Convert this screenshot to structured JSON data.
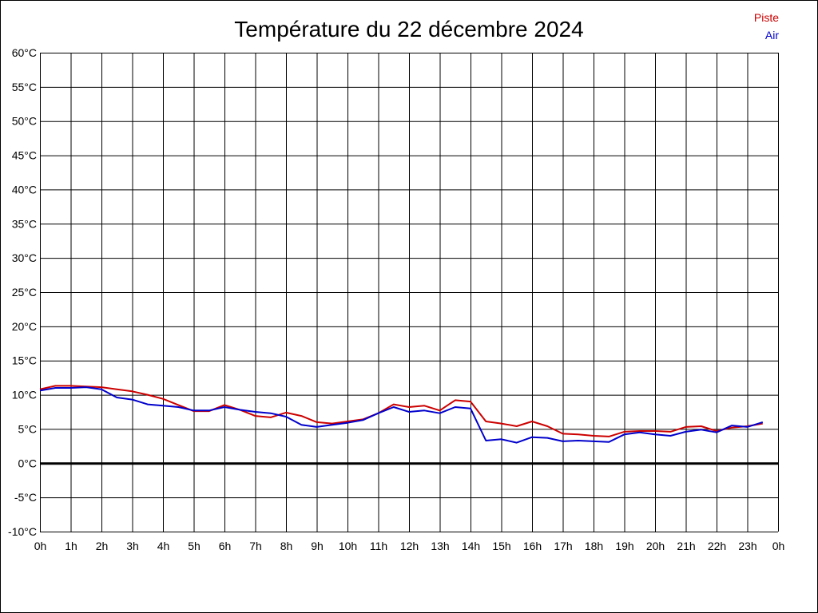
{
  "chart_data": {
    "type": "line",
    "title": "Température du 22 décembre 2024",
    "xlabel": "",
    "ylabel": "",
    "xlim": [
      0,
      24
    ],
    "ylim": [
      -10,
      60
    ],
    "grid": true,
    "legend_position": "top-right",
    "x_ticks": [
      "0h",
      "1h",
      "2h",
      "3h",
      "4h",
      "5h",
      "6h",
      "7h",
      "8h",
      "9h",
      "10h",
      "11h",
      "12h",
      "13h",
      "14h",
      "15h",
      "16h",
      "17h",
      "18h",
      "19h",
      "20h",
      "21h",
      "22h",
      "23h",
      "0h"
    ],
    "y_ticks": [
      "60°C",
      "55°C",
      "50°C",
      "45°C",
      "40°C",
      "35°C",
      "30°C",
      "25°C",
      "20°C",
      "15°C",
      "10°C",
      "5°C",
      "0°C",
      "-5°C",
      "-10°C"
    ],
    "x": [
      0,
      0.5,
      1,
      1.5,
      2,
      2.5,
      3,
      3.5,
      4,
      4.5,
      5,
      5.5,
      6,
      6.5,
      7,
      7.5,
      8,
      8.5,
      9,
      9.5,
      10,
      10.5,
      11,
      11.5,
      12,
      12.5,
      13,
      13.5,
      14,
      14.5,
      15,
      15.5,
      16,
      16.5,
      17,
      17.5,
      18,
      18.5,
      19,
      19.5,
      20,
      20.5,
      21,
      21.5,
      22,
      22.5,
      23,
      23.5
    ],
    "series": [
      {
        "name": "Piste",
        "color": "#cc0000",
        "values": [
          10.8,
          11.3,
          11.3,
          11.2,
          11.1,
          10.8,
          10.5,
          10.0,
          9.4,
          8.5,
          7.6,
          7.6,
          8.5,
          7.8,
          6.9,
          6.7,
          7.4,
          6.9,
          6.0,
          5.8,
          6.1,
          6.4,
          7.3,
          8.6,
          8.2,
          8.4,
          7.7,
          9.2,
          9.0,
          6.1,
          5.8,
          5.4,
          6.1,
          5.4,
          4.3,
          4.2,
          4.0,
          3.9,
          4.6,
          4.7,
          4.7,
          4.6,
          5.3,
          5.4,
          4.7,
          5.2,
          5.4,
          5.8
        ]
      },
      {
        "name": "Air",
        "color": "#0000cc",
        "values": [
          10.6,
          11.0,
          11.0,
          11.1,
          10.8,
          9.6,
          9.3,
          8.6,
          8.4,
          8.2,
          7.7,
          7.7,
          8.2,
          7.8,
          7.5,
          7.3,
          6.8,
          5.6,
          5.3,
          5.6,
          5.9,
          6.3,
          7.3,
          8.2,
          7.5,
          7.7,
          7.3,
          8.2,
          8.0,
          3.3,
          3.5,
          3.0,
          3.8,
          3.7,
          3.2,
          3.3,
          3.2,
          3.1,
          4.2,
          4.5,
          4.2,
          4.0,
          4.6,
          4.9,
          4.5,
          5.5,
          5.3,
          6.0
        ]
      }
    ]
  }
}
